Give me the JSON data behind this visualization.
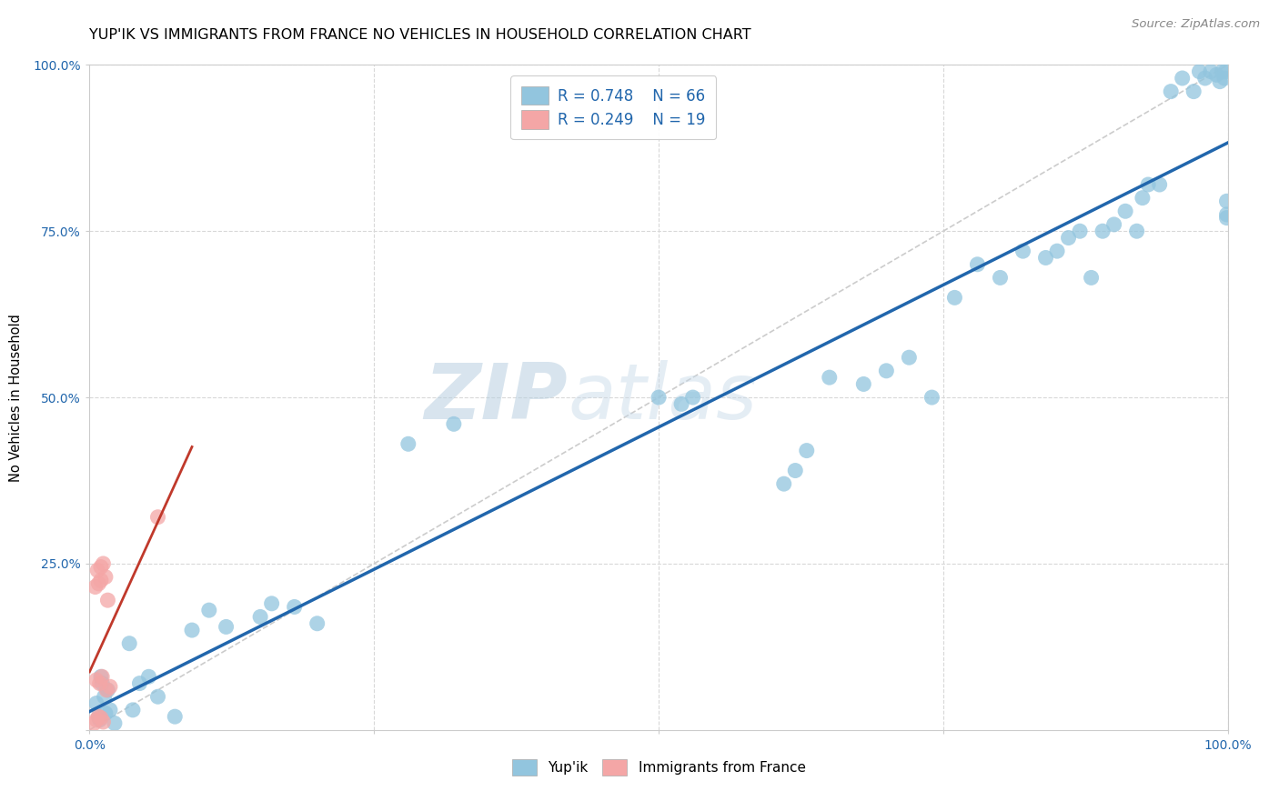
{
  "title": "YUP'IK VS IMMIGRANTS FROM FRANCE NO VEHICLES IN HOUSEHOLD CORRELATION CHART",
  "source": "Source: ZipAtlas.com",
  "ylabel": "No Vehicles in Household",
  "xlim": [
    0.0,
    1.0
  ],
  "ylim": [
    0.0,
    1.0
  ],
  "background_color": "#ffffff",
  "grid_color": "#d8d8d8",
  "watermark_zip": "ZIP",
  "watermark_atlas": "atlas",
  "blue_color": "#92c5de",
  "pink_color": "#f4a6a6",
  "blue_line_color": "#2166ac",
  "pink_line_color": "#c0392b",
  "diag_color": "#cccccc",
  "yupik_x": [
    0.013,
    0.008,
    0.018,
    0.01,
    0.022,
    0.006,
    0.016,
    0.009,
    0.014,
    0.011,
    0.038,
    0.052,
    0.044,
    0.06,
    0.075,
    0.09,
    0.105,
    0.035,
    0.12,
    0.15,
    0.16,
    0.18,
    0.2,
    0.28,
    0.32,
    0.5,
    0.52,
    0.61,
    0.63,
    0.62,
    0.65,
    0.68,
    0.7,
    0.72,
    0.74,
    0.76,
    0.78,
    0.8,
    0.82,
    0.84,
    0.85,
    0.86,
    0.87,
    0.88,
    0.89,
    0.9,
    0.91,
    0.92,
    0.925,
    0.93,
    0.94,
    0.95,
    0.96,
    0.97,
    0.975,
    0.98,
    0.985,
    0.99,
    0.993,
    0.995,
    0.997,
    0.998,
    0.999,
    0.999,
    0.999,
    0.53
  ],
  "yupik_y": [
    0.05,
    0.02,
    0.03,
    0.08,
    0.01,
    0.04,
    0.06,
    0.015,
    0.025,
    0.07,
    0.03,
    0.08,
    0.07,
    0.05,
    0.02,
    0.15,
    0.18,
    0.13,
    0.155,
    0.17,
    0.19,
    0.185,
    0.16,
    0.43,
    0.46,
    0.5,
    0.49,
    0.37,
    0.42,
    0.39,
    0.53,
    0.52,
    0.54,
    0.56,
    0.5,
    0.65,
    0.7,
    0.68,
    0.72,
    0.71,
    0.72,
    0.74,
    0.75,
    0.68,
    0.75,
    0.76,
    0.78,
    0.75,
    0.8,
    0.82,
    0.82,
    0.96,
    0.98,
    0.96,
    0.99,
    0.98,
    0.99,
    0.985,
    0.975,
    0.99,
    0.98,
    0.99,
    0.795,
    0.775,
    0.77,
    0.5
  ],
  "france_x": [
    0.004,
    0.006,
    0.008,
    0.01,
    0.012,
    0.005,
    0.008,
    0.01,
    0.014,
    0.016,
    0.006,
    0.009,
    0.011,
    0.015,
    0.018,
    0.007,
    0.01,
    0.012,
    0.06
  ],
  "france_y": [
    0.01,
    0.015,
    0.02,
    0.018,
    0.012,
    0.215,
    0.22,
    0.225,
    0.23,
    0.195,
    0.075,
    0.07,
    0.08,
    0.06,
    0.065,
    0.24,
    0.245,
    0.25,
    0.32
  ]
}
